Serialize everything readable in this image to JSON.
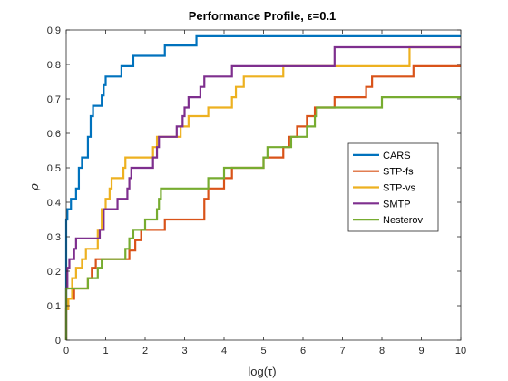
{
  "chart_data": {
    "type": "line",
    "step": true,
    "title": "Performance Profile, ε=0.1",
    "xlabel": "log(τ)",
    "ylabel": "ρ",
    "xlim": [
      0,
      10
    ],
    "ylim": [
      0,
      0.9
    ],
    "xticks": [
      "0",
      "1",
      "2",
      "3",
      "4",
      "5",
      "6",
      "7",
      "8",
      "9",
      "10"
    ],
    "yticks": [
      "0",
      "0.1",
      "0.2",
      "0.3",
      "0.4",
      "0.5",
      "0.6",
      "0.7",
      "0.8",
      "0.9"
    ],
    "grid": false,
    "legend_position": "right",
    "series": [
      {
        "name": "CARS",
        "color": "#0072BD",
        "points": [
          [
            0,
            0
          ],
          [
            0,
            0.35
          ],
          [
            0.03,
            0.38
          ],
          [
            0.12,
            0.41
          ],
          [
            0.25,
            0.44
          ],
          [
            0.32,
            0.5
          ],
          [
            0.4,
            0.53
          ],
          [
            0.55,
            0.59
          ],
          [
            0.62,
            0.65
          ],
          [
            0.68,
            0.68
          ],
          [
            0.9,
            0.71
          ],
          [
            0.95,
            0.74
          ],
          [
            1.0,
            0.765
          ],
          [
            1.4,
            0.795
          ],
          [
            1.7,
            0.825
          ],
          [
            2.5,
            0.855
          ],
          [
            3.3,
            0.882
          ],
          [
            10,
            0.882
          ]
        ]
      },
      {
        "name": "STP-fs",
        "color": "#D95319",
        "points": [
          [
            0,
            0
          ],
          [
            0,
            0.09
          ],
          [
            0.05,
            0.12
          ],
          [
            0.2,
            0.15
          ],
          [
            0.55,
            0.18
          ],
          [
            0.65,
            0.21
          ],
          [
            0.75,
            0.235
          ],
          [
            1.6,
            0.26
          ],
          [
            1.75,
            0.29
          ],
          [
            1.9,
            0.32
          ],
          [
            2.5,
            0.35
          ],
          [
            3.5,
            0.41
          ],
          [
            3.6,
            0.44
          ],
          [
            4.0,
            0.47
          ],
          [
            4.2,
            0.5
          ],
          [
            5.0,
            0.53
          ],
          [
            5.5,
            0.56
          ],
          [
            5.65,
            0.59
          ],
          [
            5.85,
            0.62
          ],
          [
            6.1,
            0.65
          ],
          [
            6.3,
            0.675
          ],
          [
            6.8,
            0.705
          ],
          [
            7.6,
            0.735
          ],
          [
            7.75,
            0.765
          ],
          [
            8.8,
            0.795
          ],
          [
            10,
            0.795
          ]
        ]
      },
      {
        "name": "STP-vs",
        "color": "#EDB120",
        "points": [
          [
            0,
            0
          ],
          [
            0,
            0.09
          ],
          [
            0.05,
            0.12
          ],
          [
            0.15,
            0.18
          ],
          [
            0.25,
            0.21
          ],
          [
            0.4,
            0.235
          ],
          [
            0.5,
            0.265
          ],
          [
            0.8,
            0.32
          ],
          [
            0.9,
            0.38
          ],
          [
            1.0,
            0.41
          ],
          [
            1.1,
            0.44
          ],
          [
            1.15,
            0.47
          ],
          [
            1.45,
            0.5
          ],
          [
            1.5,
            0.53
          ],
          [
            2.2,
            0.56
          ],
          [
            2.3,
            0.59
          ],
          [
            2.9,
            0.62
          ],
          [
            3.1,
            0.65
          ],
          [
            3.6,
            0.675
          ],
          [
            4.2,
            0.705
          ],
          [
            4.3,
            0.735
          ],
          [
            4.5,
            0.765
          ],
          [
            5.5,
            0.795
          ],
          [
            8.7,
            0.85
          ],
          [
            10,
            0.85
          ]
        ]
      },
      {
        "name": "SMTP",
        "color": "#7E2F8E",
        "points": [
          [
            0,
            0
          ],
          [
            0,
            0.15
          ],
          [
            0.03,
            0.21
          ],
          [
            0.08,
            0.235
          ],
          [
            0.2,
            0.265
          ],
          [
            0.25,
            0.295
          ],
          [
            0.85,
            0.32
          ],
          [
            0.95,
            0.38
          ],
          [
            1.3,
            0.41
          ],
          [
            1.55,
            0.44
          ],
          [
            1.6,
            0.47
          ],
          [
            1.65,
            0.5
          ],
          [
            2.2,
            0.53
          ],
          [
            2.3,
            0.56
          ],
          [
            2.35,
            0.59
          ],
          [
            2.8,
            0.62
          ],
          [
            2.95,
            0.65
          ],
          [
            3.0,
            0.675
          ],
          [
            3.1,
            0.705
          ],
          [
            3.4,
            0.735
          ],
          [
            3.5,
            0.765
          ],
          [
            4.2,
            0.795
          ],
          [
            6.8,
            0.85
          ],
          [
            10,
            0.85
          ]
        ]
      },
      {
        "name": "Nesterov",
        "color": "#77AC30",
        "points": [
          [
            0,
            0
          ],
          [
            0,
            0.15
          ],
          [
            0.55,
            0.18
          ],
          [
            0.8,
            0.21
          ],
          [
            0.9,
            0.235
          ],
          [
            1.5,
            0.265
          ],
          [
            1.6,
            0.295
          ],
          [
            1.7,
            0.32
          ],
          [
            2.0,
            0.35
          ],
          [
            2.3,
            0.38
          ],
          [
            2.35,
            0.41
          ],
          [
            2.4,
            0.44
          ],
          [
            3.6,
            0.47
          ],
          [
            4.0,
            0.5
          ],
          [
            4.2,
            0.5
          ],
          [
            5.0,
            0.53
          ],
          [
            5.1,
            0.56
          ],
          [
            5.7,
            0.59
          ],
          [
            6.1,
            0.62
          ],
          [
            6.3,
            0.65
          ],
          [
            6.35,
            0.675
          ],
          [
            8.0,
            0.705
          ],
          [
            10,
            0.705
          ]
        ]
      }
    ]
  }
}
